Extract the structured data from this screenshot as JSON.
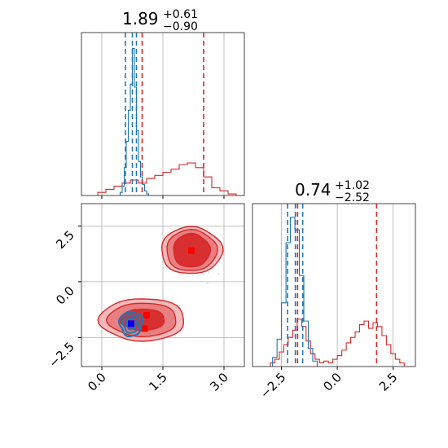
{
  "chart_data": {
    "type": "corner",
    "colors": {
      "series_a": "#1f77b4",
      "series_b": "#d62728",
      "grid": "#b0b0b0",
      "scatter": "#cccccc"
    },
    "titles": {
      "param_1": {
        "median": "1.89",
        "plus": "+0.61",
        "minus": "−0.90"
      },
      "param_2": {
        "median": "0.74",
        "plus": "+1.02",
        "minus": "−2.52"
      }
    },
    "axes": {
      "param_1": {
        "range": [
          -0.5,
          3.5
        ],
        "ticks": [
          0.0,
          1.5,
          3.0
        ],
        "tick_labels": [
          "0.0",
          "1.5",
          "3.0"
        ]
      },
      "param_2": {
        "range": [
          -3.8,
          3.5
        ],
        "ticks": [
          -2.5,
          0.0,
          2.5
        ],
        "tick_labels": [
          "−2.5",
          "0.0",
          "2.5"
        ]
      }
    },
    "marginals": {
      "param_1": {
        "series_a": {
          "bins": [
            [
              0.45,
              0.5,
              0.02
            ],
            [
              0.5,
              0.55,
              0.06
            ],
            [
              0.55,
              0.6,
              0.18
            ],
            [
              0.6,
              0.65,
              0.35
            ],
            [
              0.65,
              0.7,
              0.55
            ],
            [
              0.7,
              0.75,
              0.72
            ],
            [
              0.75,
              0.8,
              0.95
            ],
            [
              0.8,
              0.85,
              0.7
            ],
            [
              0.85,
              0.9,
              0.42
            ],
            [
              0.9,
              0.95,
              0.22
            ],
            [
              0.95,
              1.0,
              0.12
            ],
            [
              1.0,
              1.05,
              0.07
            ],
            [
              1.05,
              1.1,
              0.03
            ],
            [
              1.1,
              1.15,
              0.01
            ]
          ],
          "quantile_lines": [
            0.58,
            0.75,
            0.85
          ]
        },
        "series_b": {
          "bins": [
            [
              -0.1,
              0.1,
              0.02
            ],
            [
              0.1,
              0.3,
              0.04
            ],
            [
              0.3,
              0.5,
              0.06
            ],
            [
              0.5,
              0.7,
              0.08
            ],
            [
              0.7,
              0.9,
              0.1
            ],
            [
              0.9,
              1.1,
              0.08
            ],
            [
              1.1,
              1.3,
              0.11
            ],
            [
              1.3,
              1.5,
              0.13
            ],
            [
              1.5,
              1.7,
              0.15
            ],
            [
              1.7,
              1.9,
              0.17
            ],
            [
              1.9,
              2.1,
              0.2
            ],
            [
              2.1,
              2.3,
              0.21
            ],
            [
              2.3,
              2.5,
              0.18
            ],
            [
              2.5,
              2.7,
              0.12
            ],
            [
              2.7,
              2.9,
              0.05
            ],
            [
              2.9,
              3.1,
              0.03
            ],
            [
              3.1,
              3.3,
              0.01
            ]
          ],
          "quantile_lines": [
            0.99,
            2.5
          ]
        }
      },
      "param_2": {
        "series_a": {
          "bins": [
            [
              -2.9,
              -2.7,
              0.05
            ],
            [
              -2.7,
              -2.5,
              0.15
            ],
            [
              -2.5,
              -2.3,
              0.35
            ],
            [
              -2.3,
              -2.1,
              0.68
            ],
            [
              -2.1,
              -1.9,
              0.82
            ],
            [
              -1.9,
              -1.7,
              0.75
            ],
            [
              -1.7,
              -1.5,
              0.5
            ],
            [
              -1.5,
              -1.3,
              0.25
            ],
            [
              -1.3,
              -1.1,
              0.1
            ],
            [
              -1.1,
              -0.9,
              0.03
            ]
          ],
          "quantile_lines": [
            -2.23,
            -1.88,
            -1.55
          ]
        },
        "series_b": {
          "bins": [
            [
              -3.0,
              -2.8,
              0.02
            ],
            [
              -2.8,
              -2.6,
              0.04
            ],
            [
              -2.6,
              -2.4,
              0.08
            ],
            [
              -2.4,
              -2.2,
              0.12
            ],
            [
              -2.2,
              -2.0,
              0.16
            ],
            [
              -2.0,
              -1.8,
              0.2
            ],
            [
              -1.8,
              -1.6,
              0.26
            ],
            [
              -1.6,
              -1.4,
              0.22
            ],
            [
              -1.4,
              -1.2,
              0.14
            ],
            [
              -1.2,
              -1.0,
              0.07
            ],
            [
              -1.0,
              -0.8,
              0.04
            ],
            [
              -0.8,
              -0.6,
              0.02
            ],
            [
              -0.6,
              -0.4,
              0.03
            ],
            [
              -0.4,
              -0.2,
              0.02
            ],
            [
              -0.2,
              0.0,
              0.04
            ],
            [
              0.0,
              0.2,
              0.06
            ],
            [
              0.2,
              0.4,
              0.09
            ],
            [
              0.4,
              0.6,
              0.13
            ],
            [
              0.6,
              0.8,
              0.16
            ],
            [
              0.8,
              1.0,
              0.19
            ],
            [
              1.0,
              1.2,
              0.23
            ],
            [
              1.2,
              1.4,
              0.25
            ],
            [
              1.4,
              1.6,
              0.21
            ],
            [
              1.6,
              1.8,
              0.24
            ],
            [
              1.8,
              2.0,
              0.22
            ],
            [
              2.0,
              2.2,
              0.17
            ],
            [
              2.2,
              2.4,
              0.12
            ],
            [
              2.4,
              2.6,
              0.07
            ],
            [
              2.6,
              2.8,
              0.04
            ],
            [
              2.8,
              3.0,
              0.02
            ]
          ],
          "quantile_lines": [
            -1.78,
            1.76
          ]
        }
      }
    },
    "joint": {
      "series_b_modes": [
        {
          "center": [
            2.2,
            1.4
          ],
          "radii": [
            [
              0.75,
              1.05
            ],
            [
              0.62,
              0.92
            ],
            [
              0.45,
              0.75
            ]
          ],
          "marker": [
            2.2,
            1.4
          ]
        },
        {
          "center": [
            1.0,
            -1.7
          ],
          "radii": [
            [
              1.05,
              0.95
            ],
            [
              0.85,
              0.75
            ],
            [
              0.55,
              0.48
            ]
          ],
          "marker": [
            1.1,
            -1.5
          ]
        }
      ],
      "series_b_extra_markers": [
        [
          1.05,
          -2.1
        ]
      ],
      "series_a_mode": {
        "center": [
          0.72,
          -1.88
        ],
        "radii": [
          [
            0.28,
            0.55
          ],
          [
            0.2,
            0.4
          ],
          [
            0.12,
            0.25
          ]
        ],
        "marker": [
          0.72,
          -1.88
        ]
      }
    },
    "grid": true
  }
}
